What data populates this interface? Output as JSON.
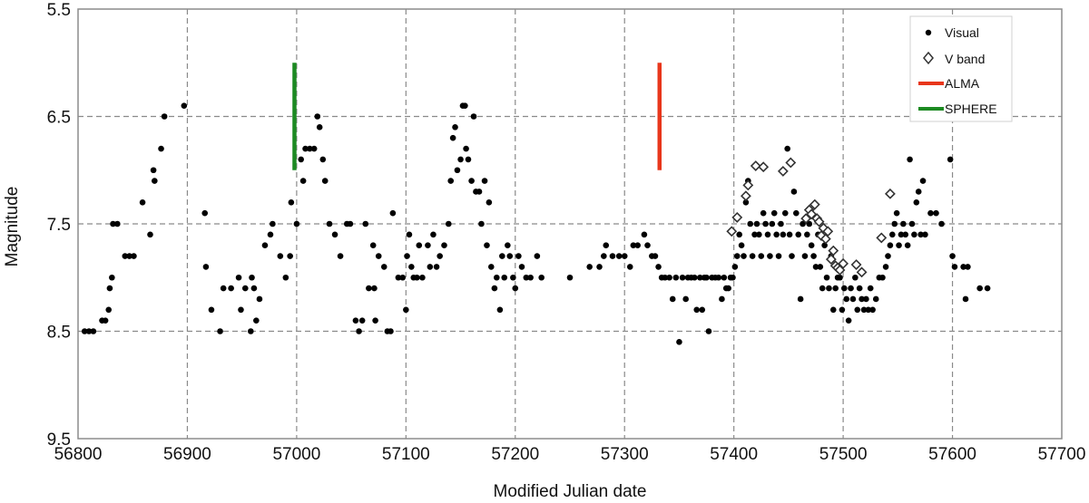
{
  "chart_data": {
    "type": "scatter",
    "title": "",
    "xlabel": "Modified Julian date",
    "ylabel": "Magnitude",
    "xlim": [
      56800,
      57700
    ],
    "ylim": [
      9.5,
      5.5
    ],
    "y_inverted": true,
    "grid": true,
    "legend_position": "top-right",
    "x_ticks": [
      "56800",
      "56900",
      "57000",
      "57100",
      "57200",
      "57300",
      "57400",
      "57500",
      "57600",
      "57700"
    ],
    "y_ticks": [
      "5.5",
      "6.5",
      "7.5",
      "8.5",
      "9.5"
    ],
    "series": [
      {
        "name": "Visual",
        "marker": "filled-circle",
        "color": "#000000",
        "points": [
          [
            56806,
            8.5
          ],
          [
            56810,
            8.5
          ],
          [
            56814,
            8.5
          ],
          [
            56822,
            8.4
          ],
          [
            56825,
            8.4
          ],
          [
            56828,
            8.3
          ],
          [
            56829,
            8.1
          ],
          [
            56831,
            8.0
          ],
          [
            56832,
            7.5
          ],
          [
            56836,
            7.5
          ],
          [
            56843,
            7.8
          ],
          [
            56847,
            7.8
          ],
          [
            56851,
            7.8
          ],
          [
            56859,
            7.3
          ],
          [
            56866,
            7.6
          ],
          [
            56869,
            7.0
          ],
          [
            56870,
            7.1
          ],
          [
            56876,
            6.8
          ],
          [
            56879,
            6.5
          ],
          [
            56897,
            6.4
          ],
          [
            56916,
            7.4
          ],
          [
            56917,
            7.9
          ],
          [
            56922,
            8.3
          ],
          [
            56930,
            8.5
          ],
          [
            56933,
            8.1
          ],
          [
            56940,
            8.1
          ],
          [
            56947,
            8.0
          ],
          [
            56949,
            8.3
          ],
          [
            56953,
            8.1
          ],
          [
            56958,
            8.5
          ],
          [
            56959,
            8.0
          ],
          [
            56961,
            8.1
          ],
          [
            56963,
            8.4
          ],
          [
            56966,
            8.2
          ],
          [
            56971,
            7.7
          ],
          [
            56976,
            7.6
          ],
          [
            56978,
            7.5
          ],
          [
            56985,
            7.8
          ],
          [
            56990,
            8.0
          ],
          [
            56994,
            7.8
          ],
          [
            56995,
            7.3
          ],
          [
            57000,
            7.5
          ],
          [
            57004,
            6.9
          ],
          [
            57006,
            7.1
          ],
          [
            57008,
            6.8
          ],
          [
            57012,
            6.8
          ],
          [
            57016,
            6.8
          ],
          [
            57019,
            6.5
          ],
          [
            57021,
            6.6
          ],
          [
            57024,
            6.9
          ],
          [
            57026,
            7.1
          ],
          [
            57030,
            7.5
          ],
          [
            57035,
            7.6
          ],
          [
            57040,
            7.8
          ],
          [
            57046,
            7.5
          ],
          [
            57049,
            7.5
          ],
          [
            57054,
            8.4
          ],
          [
            57057,
            8.5
          ],
          [
            57060,
            8.4
          ],
          [
            57063,
            7.5
          ],
          [
            57066,
            8.1
          ],
          [
            57070,
            7.7
          ],
          [
            57071,
            8.1
          ],
          [
            57072,
            8.4
          ],
          [
            57075,
            7.8
          ],
          [
            57080,
            7.9
          ],
          [
            57083,
            8.5
          ],
          [
            57086,
            8.5
          ],
          [
            57088,
            7.4
          ],
          [
            57093,
            8.0
          ],
          [
            57097,
            8.0
          ],
          [
            57100,
            8.3
          ],
          [
            57101,
            7.8
          ],
          [
            57103,
            7.6
          ],
          [
            57105,
            7.9
          ],
          [
            57107,
            8.0
          ],
          [
            57110,
            8.0
          ],
          [
            57112,
            7.7
          ],
          [
            57115,
            8.0
          ],
          [
            57120,
            7.7
          ],
          [
            57122,
            7.9
          ],
          [
            57125,
            7.6
          ],
          [
            57128,
            7.9
          ],
          [
            57131,
            7.8
          ],
          [
            57135,
            7.7
          ],
          [
            57139,
            7.5
          ],
          [
            57141,
            7.1
          ],
          [
            57143,
            6.7
          ],
          [
            57145,
            6.6
          ],
          [
            57147,
            7.0
          ],
          [
            57150,
            6.9
          ],
          [
            57152,
            6.4
          ],
          [
            57154,
            6.4
          ],
          [
            57155,
            6.8
          ],
          [
            57157,
            6.9
          ],
          [
            57160,
            7.1
          ],
          [
            57162,
            6.5
          ],
          [
            57164,
            7.2
          ],
          [
            57167,
            7.2
          ],
          [
            57169,
            7.5
          ],
          [
            57172,
            7.1
          ],
          [
            57174,
            7.7
          ],
          [
            57176,
            7.3
          ],
          [
            57178,
            7.9
          ],
          [
            57181,
            8.1
          ],
          [
            57183,
            8.0
          ],
          [
            57186,
            8.3
          ],
          [
            57188,
            7.8
          ],
          [
            57190,
            8.0
          ],
          [
            57193,
            7.7
          ],
          [
            57195,
            7.8
          ],
          [
            57198,
            8.0
          ],
          [
            57200,
            8.1
          ],
          [
            57203,
            7.8
          ],
          [
            57206,
            7.9
          ],
          [
            57210,
            8.0
          ],
          [
            57214,
            8.0
          ],
          [
            57220,
            7.8
          ],
          [
            57224,
            8.0
          ],
          [
            57250,
            8.0
          ],
          [
            57268,
            7.9
          ],
          [
            57277,
            7.9
          ],
          [
            57281,
            7.8
          ],
          [
            57283,
            7.7
          ],
          [
            57289,
            7.8
          ],
          [
            57295,
            7.8
          ],
          [
            57300,
            7.8
          ],
          [
            57305,
            7.9
          ],
          [
            57308,
            7.7
          ],
          [
            57312,
            7.7
          ],
          [
            57318,
            7.6
          ],
          [
            57321,
            7.7
          ],
          [
            57325,
            7.8
          ],
          [
            57328,
            7.8
          ],
          [
            57331,
            7.9
          ],
          [
            57334,
            8.0
          ],
          [
            57337,
            8.0
          ],
          [
            57341,
            8.0
          ],
          [
            57344,
            8.2
          ],
          [
            57347,
            8.0
          ],
          [
            57350,
            8.6
          ],
          [
            57353,
            8.0
          ],
          [
            57356,
            8.2
          ],
          [
            57358,
            8.0
          ],
          [
            57361,
            8.0
          ],
          [
            57364,
            8.0
          ],
          [
            57366,
            8.3
          ],
          [
            57369,
            8.0
          ],
          [
            57371,
            8.3
          ],
          [
            57373,
            8.0
          ],
          [
            57375,
            8.0
          ],
          [
            57377,
            8.5
          ],
          [
            57380,
            8.0
          ],
          [
            57383,
            8.0
          ],
          [
            57386,
            8.0
          ],
          [
            57389,
            8.2
          ],
          [
            57391,
            8.0
          ],
          [
            57393,
            8.1
          ],
          [
            57395,
            8.1
          ],
          [
            57397,
            8.0
          ],
          [
            57399,
            8.0
          ],
          [
            57401,
            7.9
          ],
          [
            57403,
            7.8
          ],
          [
            57405,
            7.6
          ],
          [
            57407,
            7.7
          ],
          [
            57409,
            7.8
          ],
          [
            57411,
            7.3
          ],
          [
            57413,
            7.1
          ],
          [
            57415,
            7.5
          ],
          [
            57417,
            7.8
          ],
          [
            57419,
            7.6
          ],
          [
            57421,
            7.5
          ],
          [
            57423,
            7.6
          ],
          [
            57425,
            7.8
          ],
          [
            57427,
            7.4
          ],
          [
            57429,
            7.5
          ],
          [
            57431,
            7.6
          ],
          [
            57433,
            7.8
          ],
          [
            57435,
            7.5
          ],
          [
            57437,
            7.4
          ],
          [
            57439,
            7.6
          ],
          [
            57441,
            7.8
          ],
          [
            57443,
            7.5
          ],
          [
            57445,
            7.6
          ],
          [
            57447,
            7.4
          ],
          [
            57449,
            6.8
          ],
          [
            57451,
            7.6
          ],
          [
            57453,
            7.8
          ],
          [
            57455,
            7.2
          ],
          [
            57457,
            7.4
          ],
          [
            57459,
            7.6
          ],
          [
            57461,
            8.2
          ],
          [
            57463,
            7.5
          ],
          [
            57465,
            7.8
          ],
          [
            57467,
            7.6
          ],
          [
            57469,
            7.5
          ],
          [
            57471,
            7.7
          ],
          [
            57473,
            7.8
          ],
          [
            57475,
            7.9
          ],
          [
            57477,
            7.6
          ],
          [
            57479,
            7.9
          ],
          [
            57481,
            8.1
          ],
          [
            57483,
            7.7
          ],
          [
            57485,
            8.0
          ],
          [
            57487,
            8.1
          ],
          [
            57489,
            7.8
          ],
          [
            57491,
            8.3
          ],
          [
            57493,
            8.1
          ],
          [
            57495,
            8.0
          ],
          [
            57497,
            8.0
          ],
          [
            57499,
            8.3
          ],
          [
            57501,
            8.1
          ],
          [
            57503,
            8.2
          ],
          [
            57505,
            8.4
          ],
          [
            57507,
            8.1
          ],
          [
            57509,
            8.2
          ],
          [
            57511,
            8.0
          ],
          [
            57513,
            8.3
          ],
          [
            57515,
            8.1
          ],
          [
            57517,
            8.2
          ],
          [
            57519,
            8.3
          ],
          [
            57521,
            8.2
          ],
          [
            57523,
            8.3
          ],
          [
            57525,
            8.1
          ],
          [
            57527,
            8.3
          ],
          [
            57530,
            8.2
          ],
          [
            57533,
            8.0
          ],
          [
            57536,
            8.0
          ],
          [
            57539,
            7.9
          ],
          [
            57541,
            7.8
          ],
          [
            57543,
            7.7
          ],
          [
            57545,
            7.6
          ],
          [
            57547,
            7.5
          ],
          [
            57549,
            7.4
          ],
          [
            57551,
            7.7
          ],
          [
            57553,
            7.6
          ],
          [
            57555,
            7.5
          ],
          [
            57557,
            7.6
          ],
          [
            57559,
            7.7
          ],
          [
            57561,
            6.9
          ],
          [
            57563,
            7.5
          ],
          [
            57565,
            7.6
          ],
          [
            57567,
            7.3
          ],
          [
            57569,
            7.2
          ],
          [
            57571,
            7.6
          ],
          [
            57573,
            7.1
          ],
          [
            57575,
            7.6
          ],
          [
            57580,
            7.4
          ],
          [
            57585,
            7.4
          ],
          [
            57590,
            7.5
          ],
          [
            57598,
            6.9
          ],
          [
            57600,
            7.8
          ],
          [
            57602,
            7.9
          ],
          [
            57610,
            7.9
          ],
          [
            57612,
            8.2
          ],
          [
            57614,
            7.9
          ],
          [
            57625,
            8.1
          ],
          [
            57632,
            8.1
          ]
        ]
      },
      {
        "name": "V band",
        "marker": "open-diamond",
        "color": "#333333",
        "points": [
          [
            57398,
            7.57
          ],
          [
            57403,
            7.44
          ],
          [
            57411,
            7.24
          ],
          [
            57413,
            7.14
          ],
          [
            57420,
            6.96
          ],
          [
            57427,
            6.97
          ],
          [
            57445,
            7.01
          ],
          [
            57452,
            6.93
          ],
          [
            57466,
            7.45
          ],
          [
            57469,
            7.37
          ],
          [
            57471,
            7.41
          ],
          [
            57474,
            7.32
          ],
          [
            57476,
            7.45
          ],
          [
            57478,
            7.48
          ],
          [
            57480,
            7.61
          ],
          [
            57482,
            7.54
          ],
          [
            57484,
            7.64
          ],
          [
            57486,
            7.57
          ],
          [
            57489,
            7.83
          ],
          [
            57491,
            7.75
          ],
          [
            57493,
            7.89
          ],
          [
            57495,
            7.91
          ],
          [
            57497,
            7.93
          ],
          [
            57500,
            7.87
          ],
          [
            57512,
            7.88
          ],
          [
            57517,
            7.95
          ],
          [
            57535,
            7.63
          ],
          [
            57543,
            7.22
          ]
        ]
      }
    ],
    "markers": [
      {
        "name": "ALMA",
        "color": "#e8361b",
        "x": 57332,
        "y_range": [
          6.0,
          7.0
        ]
      },
      {
        "name": "SPHERE",
        "color": "#1c8a22",
        "x": 56998,
        "y_range": [
          6.0,
          7.0
        ]
      }
    ],
    "legend": [
      {
        "label": "Visual",
        "symbol": "filled-circle"
      },
      {
        "label": "V band",
        "symbol": "open-diamond"
      },
      {
        "label": "ALMA",
        "symbol": "red-line"
      },
      {
        "label": "SPHERE",
        "symbol": "green-line"
      }
    ]
  }
}
